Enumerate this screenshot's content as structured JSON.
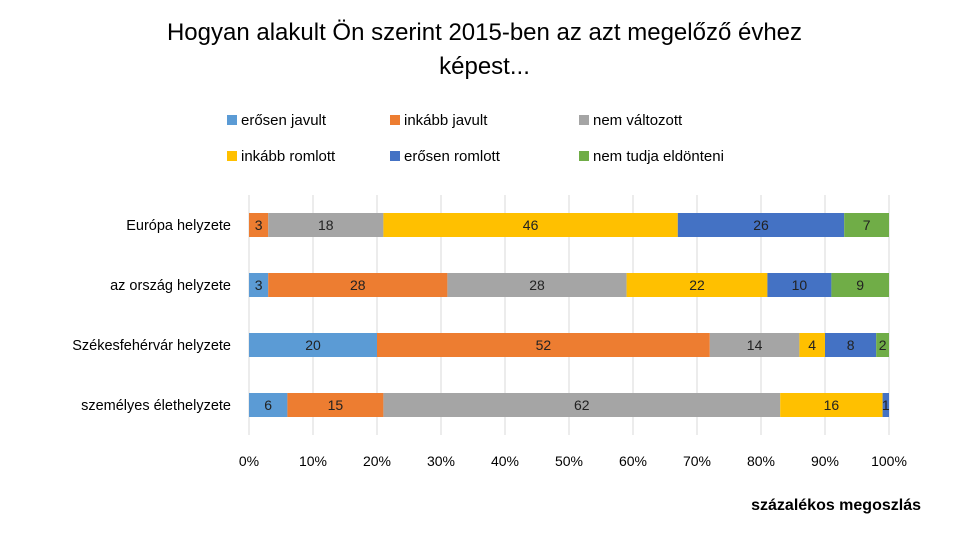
{
  "chart_data": {
    "type": "bar",
    "orientation": "horizontal",
    "stacked": "percent",
    "title": "Hogyan alakult Ön szerint 2015-ben az azt megelőző évhez képest...",
    "title_lines": [
      "Hogyan alakult Ön szerint 2015-ben az azt megelőző évhez",
      "képest..."
    ],
    "xlabel": "százalékos megoszlás",
    "ylabel": "",
    "xlim": [
      0,
      100
    ],
    "x_ticks": [
      "0%",
      "10%",
      "20%",
      "30%",
      "40%",
      "50%",
      "60%",
      "70%",
      "80%",
      "90%",
      "100%"
    ],
    "grid": true,
    "legend_position": "top",
    "categories": [
      "Európa helyzete",
      "az ország helyzete",
      "Székesfehérvár helyzete",
      "személyes élethelyzete"
    ],
    "series": [
      {
        "name": "erősen javult",
        "color": "#5B9BD5",
        "values": [
          0,
          3,
          20,
          6
        ]
      },
      {
        "name": "inkább javult",
        "color": "#ED7D31",
        "values": [
          3,
          28,
          52,
          15
        ]
      },
      {
        "name": "nem változott",
        "color": "#A5A5A5",
        "values": [
          18,
          28,
          14,
          62
        ]
      },
      {
        "name": "inkább romlott",
        "color": "#FFC000",
        "values": [
          46,
          22,
          4,
          16
        ]
      },
      {
        "name": "erősen romlott",
        "color": "#4472C4",
        "values": [
          26,
          10,
          8,
          1
        ]
      },
      {
        "name": "nem tudja eldönteni",
        "color": "#70AD47",
        "values": [
          7,
          9,
          2,
          0
        ]
      }
    ]
  }
}
